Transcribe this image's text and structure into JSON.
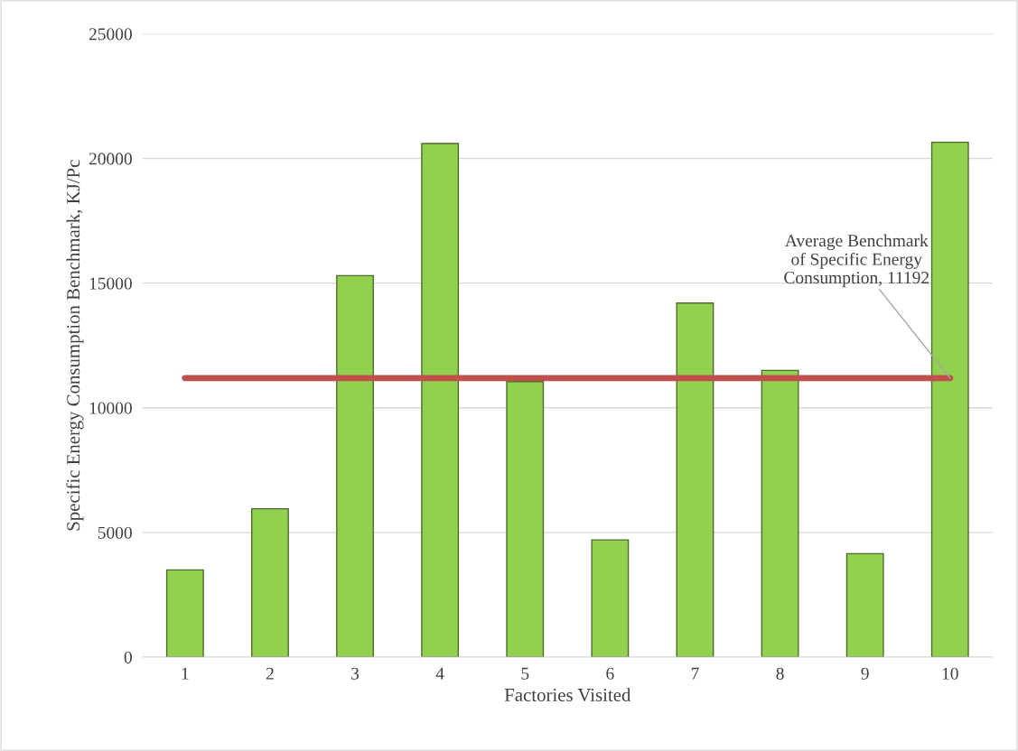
{
  "chart_data": {
    "type": "bar",
    "xlabel": "Factories Visited",
    "ylabel": "Specific Energy Consumption Benchmark, KJ/Pc",
    "categories": [
      "1",
      "2",
      "3",
      "4",
      "5",
      "6",
      "7",
      "8",
      "9",
      "10"
    ],
    "values": [
      3500,
      5950,
      15300,
      20600,
      11050,
      4700,
      14200,
      11500,
      4150,
      20650
    ],
    "color": "#92d050",
    "ylim": [
      0,
      25000
    ],
    "yticks": [
      0,
      5000,
      10000,
      15000,
      20000,
      25000
    ],
    "grid": "y",
    "ref_lines": [
      {
        "axis": "y",
        "value": 11192,
        "label": "Average Benchmark\nof Specific Energy\nConsumption, 11192",
        "color": "#c0504d",
        "line_style": "solid"
      }
    ]
  }
}
